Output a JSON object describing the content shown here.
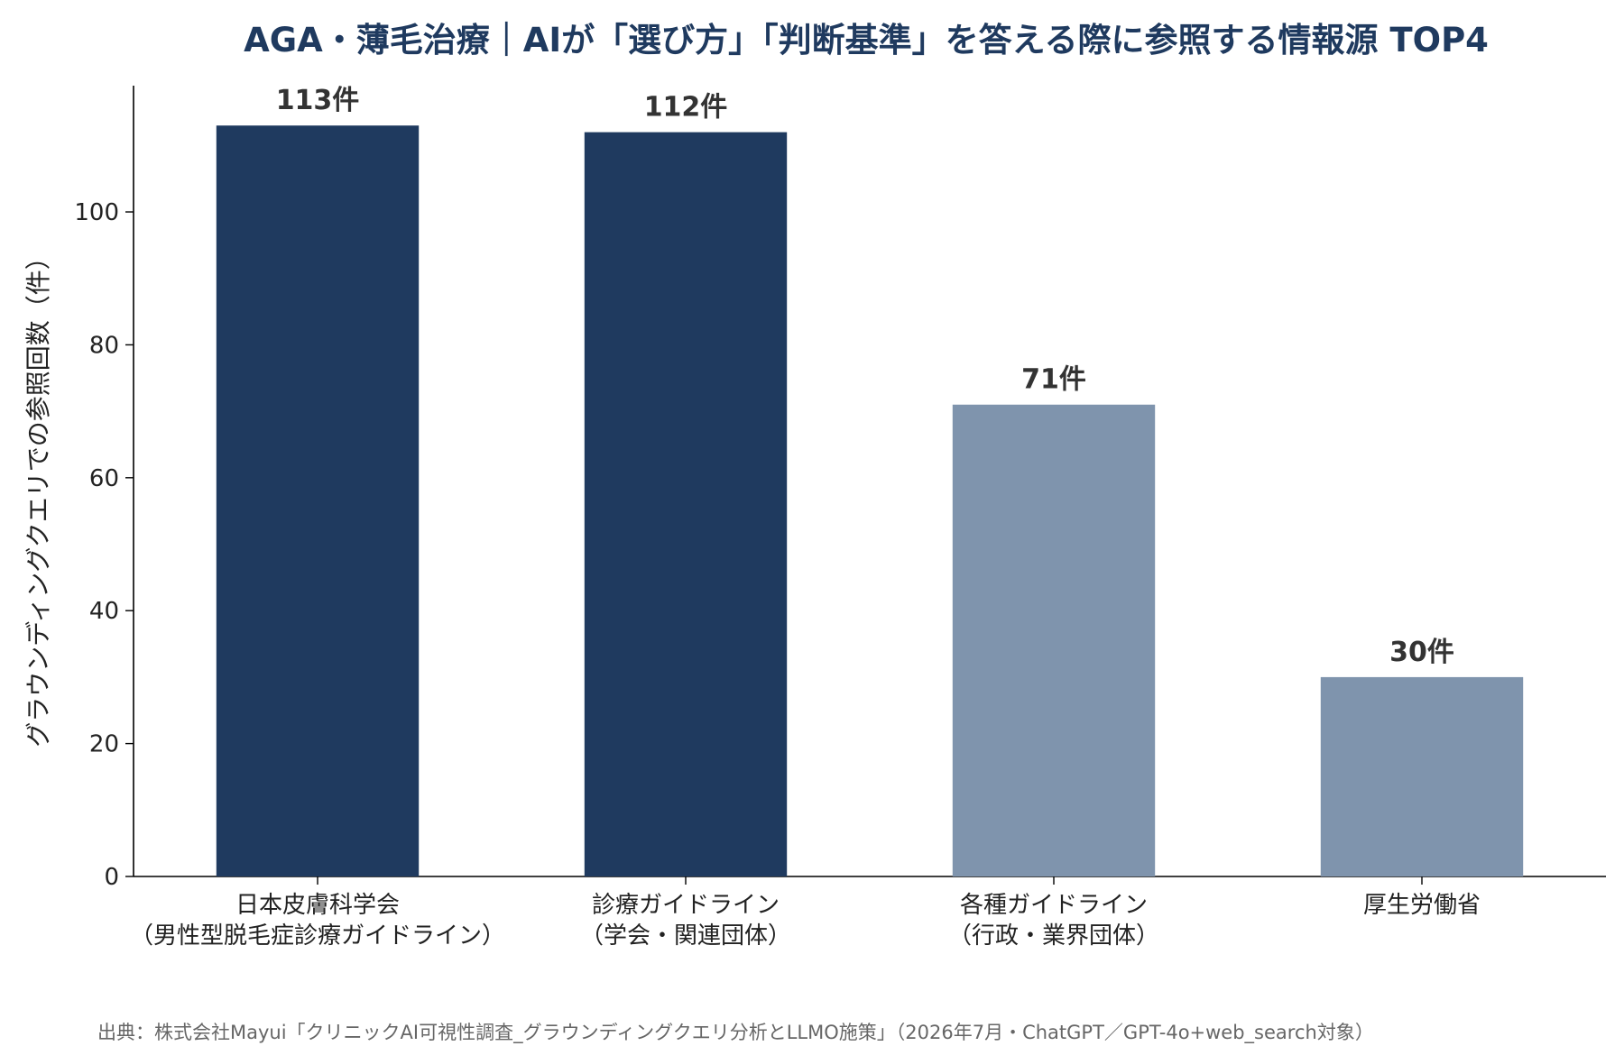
{
  "chart_data": {
    "type": "bar",
    "title": "AGA・薄毛治療｜AIが「選び方」「判断基準」を答える際に参照する情報源 TOP4",
    "xlabel": "",
    "ylabel": "グラウンディングクエリでの参照回数（件）",
    "ylim": [
      0,
      119
    ],
    "yticks": [
      0,
      20,
      40,
      60,
      80,
      100
    ],
    "categories": [
      [
        "日本皮膚科学会",
        "（男性型脱毛症診療ガイドライン）"
      ],
      [
        "診療ガイドライン",
        "（学会・関連団体）"
      ],
      [
        "各種ガイドライン",
        "（行政・業界団体）"
      ],
      [
        "厚生労働省"
      ]
    ],
    "values": [
      113,
      112,
      71,
      30
    ],
    "value_labels": [
      "113件",
      "112件",
      "71件",
      "30件"
    ],
    "bar_colors": [
      "#1f3a5f",
      "#1f3a5f",
      "#7f94ad",
      "#7f94ad"
    ],
    "grid": false,
    "legend": "none"
  },
  "source_note": "出典：株式会社Mayui「クリニックAI可視性調査_グラウンディングクエリ分析とLLMO施策」（2026年7月・ChatGPT／GPT-4o+web_search対象）"
}
